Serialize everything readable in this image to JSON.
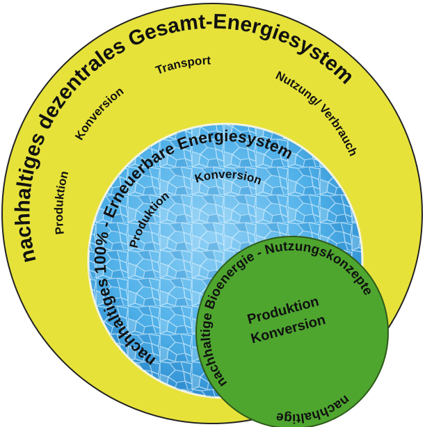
{
  "outer": {
    "title": "nachhaltiges dezentrales Gesamt-Energiesystem",
    "stages": [
      "Produktion",
      "Konversion",
      "Transport",
      "Nutzung/ Verbrauch"
    ]
  },
  "middle": {
    "title": "nachhaltiges 100% - Erneuerbare Energiesystem",
    "stages": [
      "Produktion",
      "Konversion"
    ]
  },
  "inner": {
    "title": "nachhaltige Bioenergie - Nutzungskonzepte",
    "bottom_label": "nachhaltige",
    "stages": [
      "Produktion",
      "Konversion"
    ]
  }
}
